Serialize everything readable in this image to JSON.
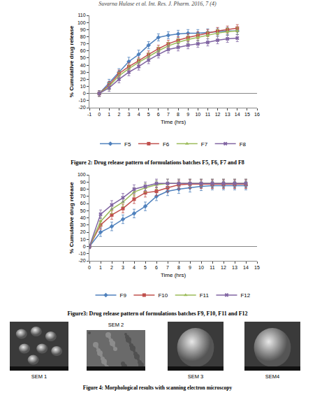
{
  "header": "Suvarna Hulase et al. Int. Res. J. Pharm. 2016, 7 (4)",
  "chart_data": [
    {
      "type": "line",
      "x_label": "Time (hrs)",
      "y_label": "% Cumulative drug release",
      "x": [
        0,
        1,
        2,
        3,
        4,
        5,
        6,
        7,
        8,
        9,
        10,
        11,
        12,
        13,
        14
      ],
      "xlim": [
        -1,
        16
      ],
      "xticks": [
        -1,
        0,
        1,
        2,
        3,
        4,
        5,
        6,
        7,
        8,
        9,
        10,
        11,
        12,
        13,
        14,
        15,
        16
      ],
      "ylim": [
        -20,
        110
      ],
      "yticks": [
        -20,
        -10,
        0,
        10,
        20,
        30,
        40,
        50,
        60,
        70,
        80,
        90,
        100,
        110
      ],
      "grid": false,
      "legend": "bottom",
      "series": [
        {
          "name": "F5",
          "color": "#4f81bd",
          "marker": "diamond",
          "values": [
            0,
            15,
            30,
            45,
            55,
            68,
            79,
            82,
            84,
            85,
            85,
            86,
            87,
            88,
            88
          ],
          "errors": [
            4,
            5,
            5,
            6,
            6,
            5,
            5,
            5,
            5,
            5,
            5,
            5,
            5,
            5,
            5
          ]
        },
        {
          "name": "F6",
          "color": "#c0504d",
          "marker": "square",
          "values": [
            0,
            12,
            28,
            38,
            46,
            55,
            63,
            70,
            75,
            79,
            82,
            85,
            88,
            90,
            92
          ],
          "errors": [
            4,
            5,
            5,
            5,
            5,
            5,
            5,
            5,
            5,
            5,
            5,
            5,
            5,
            5,
            5
          ]
        },
        {
          "name": "F7",
          "color": "#9bbb59",
          "marker": "triangle-up",
          "values": [
            0,
            10,
            25,
            35,
            44,
            52,
            60,
            67,
            72,
            76,
            79,
            82,
            85,
            87,
            88
          ],
          "errors": [
            4,
            5,
            5,
            5,
            5,
            5,
            5,
            5,
            5,
            5,
            5,
            5,
            5,
            5,
            5
          ]
        },
        {
          "name": "F8",
          "color": "#8064a2",
          "marker": "x",
          "values": [
            0,
            8,
            20,
            30,
            38,
            47,
            55,
            62,
            65,
            68,
            70,
            72,
            75,
            77,
            78
          ],
          "errors": [
            4,
            5,
            5,
            5,
            5,
            5,
            5,
            5,
            5,
            5,
            5,
            5,
            5,
            5,
            5
          ]
        }
      ]
    },
    {
      "type": "line",
      "x_label": "Time (hrs)",
      "y_label": "% Cumulative drug release",
      "x": [
        0,
        1,
        2,
        3,
        4,
        5,
        6,
        7,
        8,
        9,
        10,
        11,
        12,
        13,
        14
      ],
      "xlim": [
        0,
        15
      ],
      "xticks": [
        0,
        1,
        2,
        3,
        4,
        5,
        6,
        7,
        8,
        9,
        10,
        11,
        12,
        13,
        14,
        15
      ],
      "ylim": [
        -20,
        100
      ],
      "yticks": [
        -20,
        -10,
        0,
        10,
        20,
        30,
        40,
        50,
        60,
        70,
        80,
        90,
        100
      ],
      "grid": false,
      "legend": "bottom",
      "series": [
        {
          "name": "F9",
          "color": "#4f81bd",
          "marker": "diamond",
          "values": [
            0,
            20,
            28,
            38,
            46,
            56,
            70,
            77,
            80,
            82,
            84,
            85,
            85,
            85,
            85
          ],
          "errors": [
            3,
            6,
            6,
            6,
            6,
            6,
            6,
            6,
            6,
            6,
            6,
            6,
            6,
            6,
            6
          ]
        },
        {
          "name": "F10",
          "color": "#c0504d",
          "marker": "square",
          "values": [
            0,
            30,
            44,
            53,
            66,
            75,
            77,
            82,
            86,
            87,
            87,
            87,
            87,
            87,
            87
          ],
          "errors": [
            3,
            6,
            6,
            6,
            6,
            6,
            6,
            6,
            6,
            6,
            6,
            6,
            6,
            6,
            6
          ]
        },
        {
          "name": "F11",
          "color": "#9bbb59",
          "marker": "triangle-up",
          "values": [
            0,
            35,
            52,
            62,
            76,
            82,
            86,
            88,
            88,
            88,
            88,
            88,
            88,
            88,
            88
          ],
          "errors": [
            3,
            6,
            6,
            6,
            6,
            6,
            6,
            6,
            6,
            6,
            6,
            6,
            6,
            6,
            6
          ]
        },
        {
          "name": "F12",
          "color": "#8064a2",
          "marker": "x",
          "values": [
            0,
            45,
            58,
            68,
            80,
            84,
            88,
            88,
            88,
            88,
            88,
            88,
            88,
            88,
            88
          ],
          "errors": [
            3,
            6,
            6,
            6,
            6,
            6,
            6,
            6,
            6,
            6,
            6,
            6,
            6,
            6,
            6
          ]
        }
      ]
    }
  ],
  "figure_captions": [
    "Figure 2: Drug release pattern of formulations batches F5, F6, F7 and F8",
    "Figure3: Drug release pattern of formulations batches F9, F10, F11 and F12",
    "Figure 4: Morphological results with scanning electron microscopy"
  ],
  "sem_panels": [
    "SEM 1",
    "SEM 2",
    "SEM 3",
    "SEM4"
  ]
}
